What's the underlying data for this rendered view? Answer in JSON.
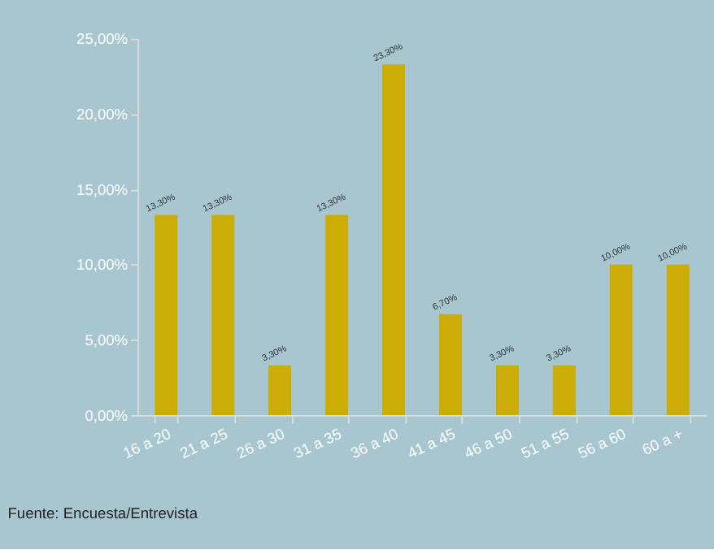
{
  "chart_data": {
    "type": "bar",
    "categories": [
      "16 a 20",
      "21 a 25",
      "26 a 30",
      "31 a 35",
      "36 a 40",
      "41 a 45",
      "46 a 50",
      "51 a 55",
      "56 a 60",
      "60 a +"
    ],
    "values": [
      13.3,
      13.3,
      3.3,
      13.3,
      23.3,
      6.7,
      3.3,
      3.3,
      10.0,
      10.0
    ],
    "value_labels": [
      "13,30%",
      "13,30%",
      "3,30%",
      "13,30%",
      "23,30%",
      "6,70%",
      "3,30%",
      "3,30%",
      "10,00%",
      "10,00%"
    ],
    "color": "#ccad07",
    "ylim": [
      0,
      25
    ],
    "yticks": [
      {
        "value": 0,
        "label": "0,00%"
      },
      {
        "value": 5,
        "label": "5,00%"
      },
      {
        "value": 10,
        "label": "10,00%"
      },
      {
        "value": 15,
        "label": "15,00%"
      },
      {
        "value": 20,
        "label": "20,00%"
      },
      {
        "value": 25,
        "label": "25,00%"
      }
    ],
    "grid": false,
    "annotations": [
      "Fuente: Encuesta/Entrevista"
    ]
  }
}
